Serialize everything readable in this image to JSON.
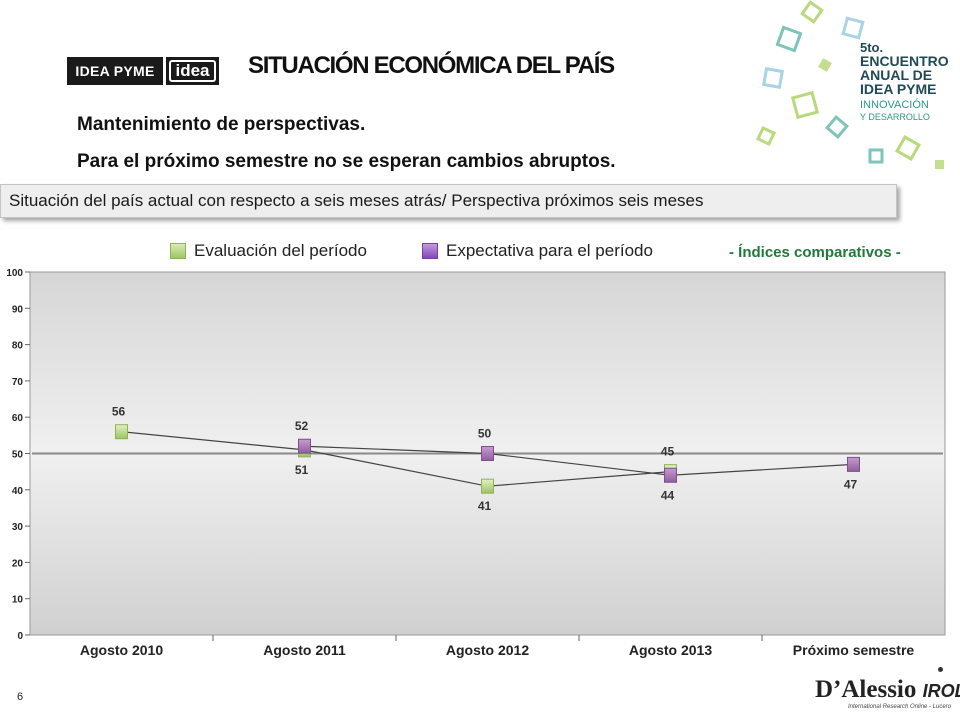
{
  "logo": {
    "text_a": "IDEA PYME",
    "text_b": "idea"
  },
  "header": {
    "title": "SITUACIÓN ECONÓMICA DEL PAÍS",
    "subtitle1": "Mantenimiento de perspectivas.",
    "subtitle2": "Para el próximo semestre no se esperan cambios abruptos."
  },
  "banner": {
    "text": "Situación del país actual con respecto a seis meses atrás/ Perspectiva próximos seis meses"
  },
  "event_badge": {
    "line1": "5to.",
    "line2": "ENCUENTRO",
    "line3": "ANUAL DE",
    "line4": "IDEA PYME",
    "line5": "INNOVACIÓN",
    "line6": "Y DESARROLLO"
  },
  "indices_label": "- Índices comparativos -",
  "page_number": "6",
  "brand": {
    "name": "D’Alessio",
    "suffix": "IROL",
    "tagline": "International Research Online - Lucero"
  },
  "colors": {
    "evaluation": "#b5d67f",
    "expectation": "#9b5fc0",
    "expectation_muted": "#a776a8",
    "line": "#444444",
    "reference": "#8a8a8a",
    "accent_green": "#1f7a3a"
  },
  "chart_data": {
    "type": "line",
    "categories": [
      "Agosto 2010",
      "Agosto 2011",
      "Agosto 2012",
      "Agosto 2013",
      "Próximo semestre"
    ],
    "ylim": [
      0,
      100
    ],
    "yticks": [
      "0",
      "10",
      "20",
      "30",
      "40",
      "50",
      "60",
      "70",
      "80",
      "90",
      "100"
    ],
    "reference_line": 50,
    "legend_position": "top",
    "grid": false,
    "series": [
      {
        "name": "Evaluación del período",
        "values": [
          56,
          51,
          41,
          45,
          null
        ],
        "labels": [
          "56",
          "51",
          "41",
          "45",
          ""
        ]
      },
      {
        "name": "Expectativa para el período",
        "values": [
          null,
          52,
          50,
          44,
          47
        ],
        "labels": [
          "",
          "52",
          "50",
          "44",
          "47"
        ]
      }
    ]
  }
}
